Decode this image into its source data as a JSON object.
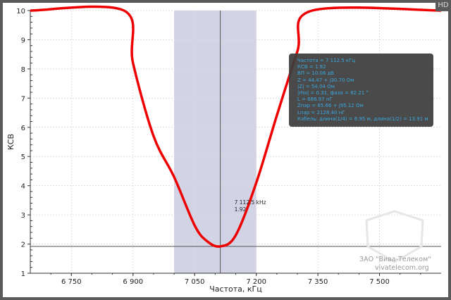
{
  "badge": "HD",
  "chart_data": {
    "type": "line",
    "xlabel": "Частота, кГц",
    "ylabel": "КСВ",
    "xlim": [
      6650,
      7650
    ],
    "ylim": [
      1,
      10
    ],
    "x_ticks": [
      "6 750",
      "6 900",
      "7 050",
      "7 200",
      "7 350",
      "7 500"
    ],
    "x_tick_values": [
      6750,
      6900,
      7050,
      7200,
      7350,
      7500
    ],
    "y_ticks": [
      "1",
      "2",
      "3",
      "4",
      "5",
      "6",
      "7",
      "8",
      "9",
      "10"
    ],
    "grid": true,
    "band": [
      7000,
      7200
    ],
    "band_color": "#d3d3e6",
    "series": [
      {
        "color": "#ee0000",
        "points": [
          [
            6650,
            10
          ],
          [
            6878,
            10
          ],
          [
            6900,
            8.2
          ],
          [
            6950,
            5.7
          ],
          [
            7000,
            4.3
          ],
          [
            7050,
            2.64
          ],
          [
            7080,
            2.1
          ],
          [
            7112.5,
            1.92
          ],
          [
            7150,
            2.3
          ],
          [
            7200,
            4.1
          ],
          [
            7250,
            6.4
          ],
          [
            7300,
            8.6
          ],
          [
            7336,
            10
          ],
          [
            7650,
            10
          ]
        ]
      }
    ],
    "marker": {
      "x": 7112.5,
      "y": 1.92,
      "label_freq": "7 112.5 kHz",
      "label_value": "1.92"
    }
  },
  "info_box": {
    "lines": [
      "Частота = 7 112.5 кГц",
      "КСВ = 1.92",
      "ВП = 10.06 дБ",
      "Z = 44.47 + j30.70 Ом",
      "|Z| = 54.04 Ом",
      "|rho| = 0.31, фаза = 82.21 °",
      "L = 686.97 нГ",
      "Zпар = 65.66 + j95.12 Ом",
      "Lпар = 2128.40 нГ",
      "Кабель: длина(1/4) = 6.95 м, длина(1/2) = 13.91 м"
    ]
  },
  "watermark": {
    "company": "ЗАО \"Вива-Телеком\"",
    "site": "vivatelecom.org"
  }
}
